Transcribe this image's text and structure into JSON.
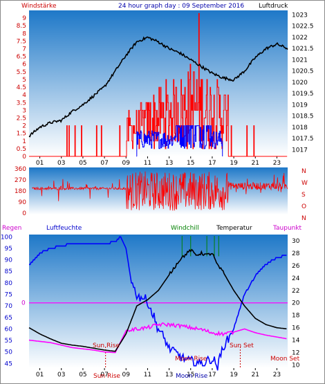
{
  "header": {
    "windstaerke": "Windstärke",
    "title": "24 hour graph day : 09 September 2016",
    "luftdruck": "Luftdruck"
  },
  "panel3": {
    "regen": "Regen",
    "luftfeuchte": "Luftfeuchte",
    "windchill": "Windchill",
    "temperatur": "Temperatur",
    "taupunkt": "Taupunkt"
  },
  "annotations": {
    "sun_rise": "Sun Rise",
    "sun_set": "Sun Set",
    "moon_rise": "Moon Rise",
    "moon_set": "Moon Set"
  },
  "colors": {
    "wind": "#ff0000",
    "gust": "#0000ff",
    "pressure": "#000000",
    "direction": "#ff0000",
    "humidity": "#0000ff",
    "temperature": "#000000",
    "dewpoint": "#ff00ff",
    "windchill": "#008000",
    "rain": "#ff00ff"
  },
  "chart_data": [
    {
      "type": "line",
      "name": "Windstärke / Luftdruck",
      "x_ticks": [
        "01",
        "03",
        "05",
        "07",
        "09",
        "11",
        "13",
        "15",
        "17",
        "19",
        "21",
        "23"
      ],
      "y_left_ticks": [
        "0",
        "0.5",
        "1",
        "1.5",
        "2",
        "2.5",
        "3",
        "3.5",
        "4",
        "4.5",
        "5",
        "5.5",
        "6",
        "6.5",
        "7",
        "7.5",
        "8",
        "8.5",
        "9"
      ],
      "y_right_ticks": [
        "1017",
        "1017.5",
        "1018",
        "1018.5",
        "1019",
        "1019.5",
        "1020",
        "1020.5",
        "1021",
        "1021.5",
        "1022",
        "1022.5",
        "1023"
      ],
      "ylim_left": [
        0,
        9.5
      ],
      "ylim_right": [
        1016.7,
        1023.2
      ],
      "pressure": {
        "x": [
          0,
          1,
          2,
          3,
          4,
          5,
          6,
          7,
          8,
          9,
          10,
          11,
          12,
          13,
          14,
          15,
          16,
          17,
          18,
          19,
          20,
          21,
          22,
          23,
          24
        ],
        "y": [
          1017.6,
          1018.0,
          1018.2,
          1018.3,
          1018.7,
          1019.0,
          1019.4,
          1019.8,
          1020.5,
          1021.2,
          1021.8,
          1022.0,
          1021.8,
          1021.5,
          1021.3,
          1021.0,
          1020.7,
          1020.4,
          1020.2,
          1020.1,
          1020.5,
          1021.1,
          1021.5,
          1021.7,
          1021.5
        ]
      },
      "wind_max_hours": [
        10,
        18
      ],
      "wind_peak": 9.3
    },
    {
      "type": "line",
      "name": "Windrichtung",
      "y_left_ticks": [
        "360",
        "270",
        "180",
        "90",
        "0"
      ],
      "y_right_ticks": [
        "N",
        "W",
        "S",
        "O",
        "N"
      ],
      "ylim": [
        0,
        360
      ]
    },
    {
      "type": "line",
      "name": "Luftfeuchte / Temperatur",
      "x_ticks": [
        "01",
        "03",
        "05",
        "07",
        "09",
        "11",
        "13",
        "15",
        "17",
        "19",
        "21",
        "23"
      ],
      "y_left_ticks": [
        "45",
        "50",
        "55",
        "60",
        "65",
        "70",
        "75",
        "80",
        "85",
        "90",
        "95",
        "100"
      ],
      "y_right_ticks": [
        "10",
        "12",
        "14",
        "16",
        "18",
        "20",
        "22",
        "24",
        "26",
        "28",
        "30"
      ],
      "rain_label": "0",
      "ylim_left": [
        43,
        101
      ],
      "ylim_right": [
        9.5,
        31
      ],
      "humidity": {
        "x": [
          0,
          0.5,
          1,
          2,
          3,
          4,
          5,
          6,
          7,
          8,
          8.5,
          9,
          9.5,
          10,
          11,
          12,
          13,
          14,
          15,
          16,
          17,
          17.5,
          18,
          19,
          20,
          21,
          22,
          23,
          24
        ],
        "y": [
          88,
          90,
          93,
          95,
          96,
          97,
          97,
          97,
          97,
          98,
          100,
          95,
          80,
          75,
          72,
          60,
          52,
          48,
          46,
          45,
          47,
          44,
          52,
          60,
          75,
          83,
          88,
          91,
          92
        ]
      },
      "temperature": {
        "x": [
          0,
          1,
          2,
          3,
          4,
          5,
          6,
          7,
          8,
          9,
          10,
          11,
          12,
          13,
          14,
          15,
          15.5,
          16,
          16.5,
          17,
          17.5,
          18,
          19,
          20,
          21,
          22,
          23,
          24
        ],
        "y": [
          16.0,
          15.0,
          14.2,
          13.5,
          13.2,
          13.0,
          12.7,
          12.4,
          12.2,
          15.0,
          19.5,
          20.5,
          22.0,
          24.5,
          27.0,
          28.5,
          27.7,
          28.0,
          27.7,
          28.0,
          26.0,
          25.0,
          22.0,
          19.5,
          17.5,
          16.5,
          16.0,
          15.8
        ]
      },
      "dewpoint": {
        "x": [
          0,
          1,
          2,
          3,
          4,
          5,
          6,
          7,
          8,
          9,
          10,
          11,
          12,
          13,
          14,
          15,
          16,
          17,
          18,
          19,
          20,
          21,
          22,
          23,
          24
        ],
        "y": [
          14.0,
          13.8,
          13.6,
          13.2,
          12.8,
          12.6,
          12.4,
          12.1,
          12.0,
          15.5,
          15.8,
          16.0,
          16.5,
          16.5,
          16.3,
          16.0,
          15.7,
          15.2,
          15.0,
          15.3,
          15.8,
          15.2,
          14.8,
          14.5,
          14.2
        ]
      },
      "windchill_spike_hours": [
        14.2,
        15.0,
        16.5,
        17.2,
        17.6
      ]
    }
  ]
}
